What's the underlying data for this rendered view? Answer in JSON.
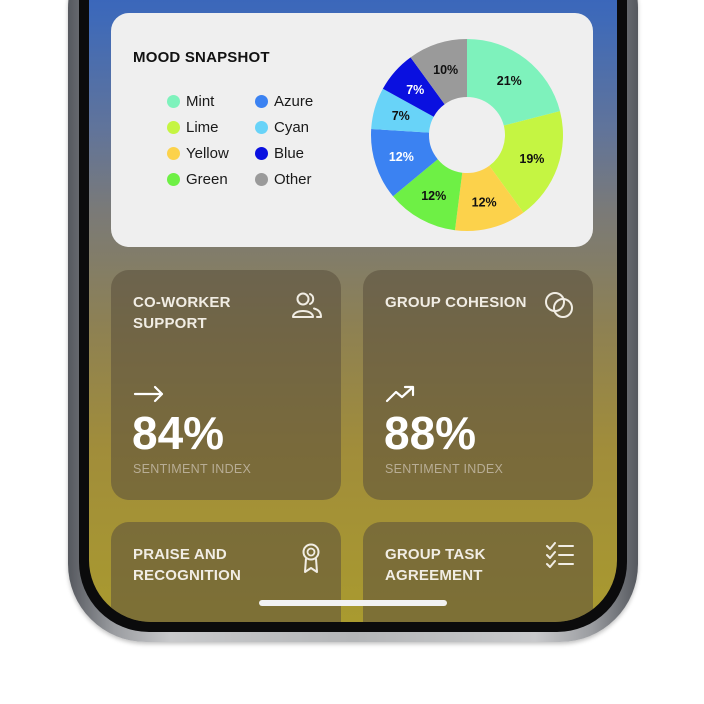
{
  "mood_snapshot": {
    "title": "MOOD SNAPSHOT",
    "legend": [
      {
        "label": "Mint",
        "color": "#7ef2bc"
      },
      {
        "label": "Lime",
        "color": "#c5f542"
      },
      {
        "label": "Yellow",
        "color": "#fcd24b"
      },
      {
        "label": "Green",
        "color": "#6ef045"
      },
      {
        "label": "Azure",
        "color": "#3b82f2"
      },
      {
        "label": "Cyan",
        "color": "#68d3f8"
      },
      {
        "label": "Blue",
        "color": "#0a10e0"
      },
      {
        "label": "Other",
        "color": "#9a9a9a"
      }
    ]
  },
  "chart_data": {
    "type": "pie",
    "slices": [
      {
        "label": "Mint",
        "value": 21,
        "text": "21%",
        "color": "#7ef2bc"
      },
      {
        "label": "Lime",
        "value": 19,
        "text": "19%",
        "color": "#c5f542"
      },
      {
        "label": "Yellow",
        "value": 12,
        "text": "12%",
        "color": "#fcd24b"
      },
      {
        "label": "Green",
        "value": 12,
        "text": "12%",
        "color": "#6ef045"
      },
      {
        "label": "Azure",
        "value": 12,
        "text": "12%",
        "color": "#3b82f2"
      },
      {
        "label": "Cyan",
        "value": 7,
        "text": "7%",
        "color": "#68d3f8"
      },
      {
        "label": "Blue",
        "value": 7,
        "text": "7%",
        "color": "#0a10e0"
      },
      {
        "label": "Other",
        "value": 10,
        "text": "10%",
        "color": "#9a9a9a"
      }
    ]
  },
  "tiles": {
    "coworker": {
      "title": "CO-WORKER SUPPORT",
      "value": "84%",
      "sub": "SENTIMENT INDEX",
      "trend": "flat-arrow-icon",
      "icon": "users-icon"
    },
    "cohesion": {
      "title": "GROUP COHESION",
      "value": "88%",
      "sub": "SENTIMENT INDEX",
      "trend": "trending-up-icon",
      "icon": "circles-icon"
    },
    "praise": {
      "title": "PRAISE AND RECOGNITION",
      "icon": "award-icon"
    },
    "task": {
      "title": "GROUP TASK AGREEMENT",
      "icon": "checklist-icon"
    }
  }
}
